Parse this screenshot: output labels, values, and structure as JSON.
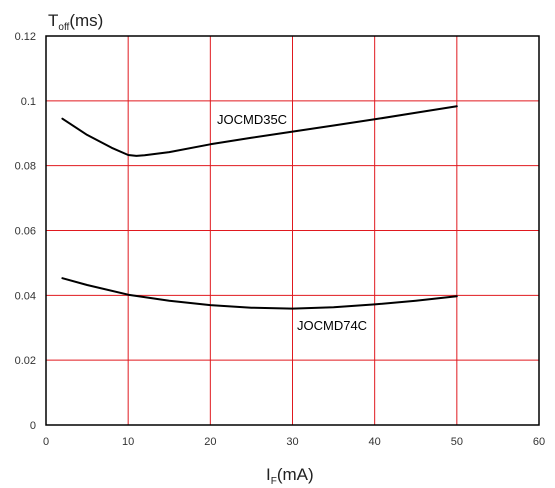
{
  "chart_data": {
    "type": "line",
    "xlim": [
      0,
      60
    ],
    "ylim": [
      0,
      0.12
    ],
    "x_ticks": [
      "0",
      "10",
      "20",
      "30",
      "40",
      "50",
      "60"
    ],
    "y_ticks": [
      "0",
      "0.02",
      "0.04",
      "0.06",
      "0.08",
      "0.1",
      "0.12"
    ],
    "ylabel": {
      "main": "T",
      "sub": "off",
      "unit": "(ms)"
    },
    "xlabel": {
      "main": "I",
      "sub": "F",
      "unit": "(mA)"
    },
    "grid": true,
    "grid_color": "#e0191f",
    "frame_color": "#000000",
    "line_color": "#000000",
    "series": [
      {
        "name": "JOCMD35C",
        "x": [
          2,
          5,
          8,
          10,
          11,
          12,
          15,
          20,
          25,
          30,
          35,
          40,
          45,
          50
        ],
        "y": [
          0.0945,
          0.0895,
          0.0855,
          0.0833,
          0.083,
          0.0832,
          0.0842,
          0.0866,
          0.0886,
          0.0905,
          0.0924,
          0.0943,
          0.0963,
          0.0983
        ]
      },
      {
        "name": "JOCMD74C",
        "x": [
          2,
          5,
          10,
          15,
          20,
          25,
          30,
          35,
          40,
          45,
          50
        ],
        "y": [
          0.0453,
          0.0432,
          0.0402,
          0.0383,
          0.037,
          0.0362,
          0.0359,
          0.0363,
          0.0372,
          0.0383,
          0.0397
        ]
      }
    ]
  }
}
